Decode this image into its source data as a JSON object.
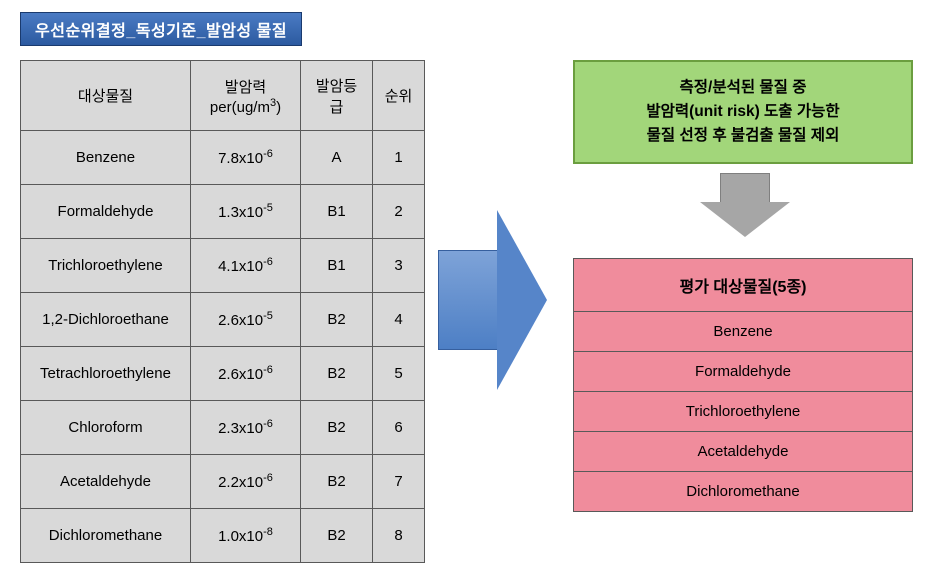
{
  "title": "우선순위결정_독성기준_발암성 물질",
  "table": {
    "headers": {
      "substance": "대상물질",
      "carc_power": "발암력",
      "carc_unit": "per(ug/m",
      "carc_unit_sup": "3",
      "carc_unit_close": ")",
      "grade": "발암등급",
      "rank": "순위"
    },
    "rows": [
      {
        "substance": "Benzene",
        "val_base": "7.8x10",
        "val_exp": "-6",
        "grade": "A",
        "rank": "1"
      },
      {
        "substance": "Formaldehyde",
        "val_base": "1.3x10",
        "val_exp": "-5",
        "grade": "B1",
        "rank": "2"
      },
      {
        "substance": "Trichloroethylene",
        "val_base": "4.1x10",
        "val_exp": "-6",
        "grade": "B1",
        "rank": "3"
      },
      {
        "substance": "1,2-Dichloroethane",
        "val_base": "2.6x10",
        "val_exp": "-5",
        "grade": "B2",
        "rank": "4"
      },
      {
        "substance": "Tetrachloroethylene",
        "val_base": "2.6x10",
        "val_exp": "-6",
        "grade": "B2",
        "rank": "5"
      },
      {
        "substance": "Chloroform",
        "val_base": "2.3x10",
        "val_exp": "-6",
        "grade": "B2",
        "rank": "6"
      },
      {
        "substance": "Acetaldehyde",
        "val_base": "2.2x10",
        "val_exp": "-6",
        "grade": "B2",
        "rank": "7"
      },
      {
        "substance": "Dichloromethane",
        "val_base": "1.0x10",
        "val_exp": "-8",
        "grade": "B2",
        "rank": "8"
      }
    ]
  },
  "green_box": {
    "line1": "측정/분석된 물질 중",
    "line2": "발암력(unit risk) 도출 가능한",
    "line3": "물질 선정 후 불검출 물질 제외"
  },
  "pink_table": {
    "header": "평가 대상물질(5종)",
    "rows": [
      "Benzene",
      "Formaldehyde",
      "Trichloroethylene",
      "Acetaldehyde",
      "Dichloromethane"
    ]
  },
  "colors": {
    "title_bg": "#2c5aa0",
    "table_bg": "#d9d9d9",
    "border": "#595959",
    "arrow_blue": "#5685c9",
    "green_box": "#a2d67a",
    "green_border": "#6b9e3f",
    "gray_arrow": "#a6a6a6",
    "pink": "#f08c9c"
  }
}
